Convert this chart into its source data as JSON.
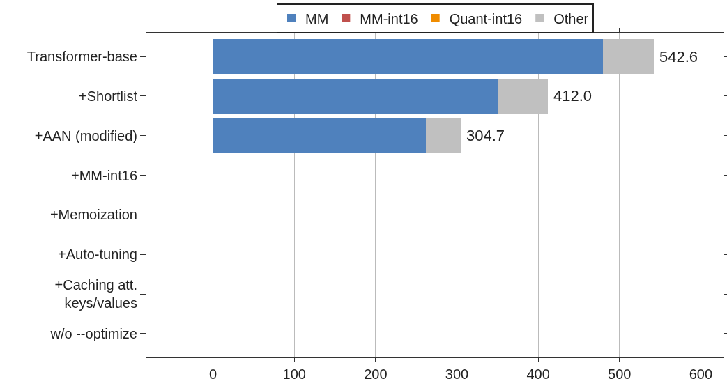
{
  "chart_data": {
    "type": "bar",
    "orientation": "horizontal",
    "stacked": true,
    "categories": [
      "Transformer-base",
      "+Shortlist",
      "+AAN (modified)",
      "+MM-int16",
      "+Memoization",
      "+Auto-tuning",
      "+Caching att.\nkeys/values",
      "w/o --optimize"
    ],
    "series": [
      {
        "name": "MM",
        "color": "#4f81bd",
        "values": [
          479.6,
          351,
          261.7,
          null,
          null,
          null,
          null,
          null
        ]
      },
      {
        "name": "MM-int16",
        "color": "#c0504d",
        "values": [
          null,
          null,
          null,
          null,
          null,
          null,
          null,
          null
        ]
      },
      {
        "name": "Quant-int16",
        "color": "#f08c00",
        "values": [
          null,
          null,
          null,
          null,
          null,
          null,
          null,
          null
        ]
      },
      {
        "name": "Other",
        "color": "#c0c0c0",
        "values": [
          63,
          61,
          43,
          null,
          null,
          null,
          null,
          null
        ]
      }
    ],
    "totals": [
      "542.6",
      "412.0",
      "304.7",
      null,
      null,
      null,
      null,
      null
    ],
    "xlim": [
      -82,
      628
    ],
    "xticks": [
      0,
      100,
      200,
      300,
      400,
      500,
      600
    ],
    "grid": "x",
    "legend": "top"
  }
}
